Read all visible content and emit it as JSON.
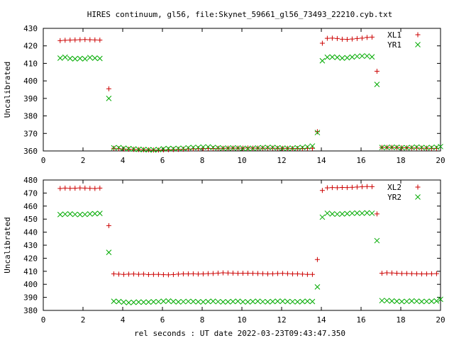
{
  "title": "HIRES continuum, gl56, file:Skynet_59661_gl56_73493_22210.cyb.txt",
  "xlabel": "rel seconds : UT date 2022-03-23T09:43:47.350",
  "chart_data": [
    {
      "type": "scatter",
      "ylabel": "Uncalibrated",
      "xlim": [
        0,
        20
      ],
      "ylim": [
        360,
        430
      ],
      "xticks": [
        0,
        2,
        4,
        6,
        8,
        10,
        12,
        14,
        16,
        18,
        20
      ],
      "yticks": [
        360,
        370,
        380,
        390,
        400,
        410,
        420,
        430
      ],
      "legend_position": "top-right",
      "series": [
        {
          "name": "XL1",
          "marker": "plus",
          "color": "#cc0000",
          "x": [
            0.85,
            1.1,
            1.35,
            1.6,
            1.85,
            2.1,
            2.35,
            2.6,
            2.85,
            3.3,
            3.55,
            3.8,
            4.05,
            4.3,
            4.55,
            4.8,
            5.05,
            5.3,
            5.55,
            5.8,
            6.05,
            6.3,
            6.55,
            6.8,
            7.05,
            7.3,
            7.55,
            7.8,
            8.05,
            8.3,
            8.55,
            8.8,
            9.05,
            9.3,
            9.55,
            9.8,
            10.05,
            10.3,
            10.55,
            10.8,
            11.05,
            11.3,
            11.55,
            11.8,
            12.05,
            12.3,
            12.55,
            12.8,
            13.05,
            13.3,
            13.55,
            13.8,
            14.05,
            14.3,
            14.55,
            14.8,
            15.05,
            15.3,
            15.55,
            15.8,
            16.05,
            16.3,
            16.55,
            16.8,
            17.05,
            17.3,
            17.55,
            17.8,
            18.05,
            18.3,
            18.55,
            18.8,
            19.05,
            19.3,
            19.55,
            19.8
          ],
          "y": [
            423,
            423.2,
            423.3,
            423.4,
            423.5,
            423.6,
            423.5,
            423.4,
            423.3,
            395.5,
            361.5,
            361.3,
            361.1,
            361.0,
            360.9,
            360.8,
            360.7,
            360.6,
            360.5,
            360.5,
            360.6,
            360.7,
            360.8,
            360.9,
            361.0,
            361.1,
            361.2,
            361.3,
            361.3,
            361.4,
            361.4,
            361.5,
            361.5,
            361.6,
            361.6,
            361.6,
            361.6,
            361.7,
            361.6,
            361.6,
            361.6,
            361.6,
            361.6,
            361.5,
            361.5,
            361.5,
            361.4,
            361.4,
            361.4,
            361.5,
            361.5,
            371,
            421.5,
            424.3,
            424.4,
            424.2,
            423.8,
            423.7,
            423.9,
            424.2,
            424.4,
            424.8,
            425.0,
            405.5,
            362,
            362.0,
            362.0,
            361.9,
            361.8,
            361.8,
            361.7,
            361.7,
            361.6,
            361.6,
            361.5,
            361.5
          ]
        },
        {
          "name": "YR1",
          "marker": "cross",
          "color": "#00aa00",
          "x": [
            0.85,
            1.1,
            1.35,
            1.6,
            1.85,
            2.1,
            2.35,
            2.6,
            2.85,
            3.3,
            3.55,
            3.8,
            4.05,
            4.3,
            4.55,
            4.8,
            5.05,
            5.3,
            5.55,
            5.8,
            6.05,
            6.3,
            6.55,
            6.8,
            7.05,
            7.3,
            7.55,
            7.8,
            8.05,
            8.3,
            8.55,
            8.8,
            9.05,
            9.3,
            9.55,
            9.8,
            10.05,
            10.3,
            10.55,
            10.8,
            11.05,
            11.3,
            11.55,
            11.8,
            12.05,
            12.3,
            12.55,
            12.8,
            13.05,
            13.3,
            13.55,
            13.8,
            14.05,
            14.3,
            14.55,
            14.8,
            15.05,
            15.3,
            15.55,
            15.8,
            16.05,
            16.3,
            16.55,
            16.8,
            17.05,
            17.3,
            17.55,
            17.8,
            18.05,
            18.3,
            18.55,
            18.8,
            19.05,
            19.3,
            19.55,
            19.8,
            20.0
          ],
          "y": [
            413,
            413.5,
            412.8,
            412.6,
            412.8,
            412.6,
            413.3,
            413.0,
            412.8,
            390,
            361.8,
            361.9,
            361.6,
            361.3,
            361.1,
            360.9,
            360.8,
            360.7,
            360.6,
            360.8,
            361.2,
            361.4,
            361.3,
            361.5,
            361.5,
            361.8,
            362.0,
            362.0,
            362.2,
            362.3,
            362.0,
            361.8,
            361.6,
            361.6,
            361.7,
            361.7,
            361.5,
            361.4,
            361.5,
            361.7,
            361.9,
            362.0,
            362.0,
            361.8,
            361.6,
            361.5,
            361.6,
            361.8,
            362.0,
            362.3,
            362.8,
            370.5,
            411.5,
            413.5,
            413.6,
            413.4,
            413.0,
            413.2,
            413.6,
            414.0,
            414.2,
            414.2,
            413.7,
            398,
            362,
            362.0,
            362.1,
            362.1,
            361.9,
            361.8,
            362.0,
            362.2,
            362.0,
            361.8,
            362.0,
            362.1,
            362.5
          ]
        }
      ]
    },
    {
      "type": "scatter",
      "ylabel": "Uncalibrated",
      "xlim": [
        0,
        20
      ],
      "ylim": [
        380,
        480
      ],
      "xticks": [
        0,
        2,
        4,
        6,
        8,
        10,
        12,
        14,
        16,
        18,
        20
      ],
      "yticks": [
        380,
        390,
        400,
        410,
        420,
        430,
        440,
        450,
        460,
        470,
        480
      ],
      "legend_position": "top-right",
      "series": [
        {
          "name": "XL2",
          "marker": "plus",
          "color": "#cc0000",
          "x": [
            0.85,
            1.1,
            1.35,
            1.6,
            1.85,
            2.1,
            2.35,
            2.6,
            2.85,
            3.3,
            3.55,
            3.8,
            4.05,
            4.3,
            4.55,
            4.8,
            5.05,
            5.3,
            5.55,
            5.8,
            6.05,
            6.3,
            6.55,
            6.8,
            7.05,
            7.3,
            7.55,
            7.8,
            8.05,
            8.3,
            8.55,
            8.8,
            9.05,
            9.3,
            9.55,
            9.8,
            10.05,
            10.3,
            10.55,
            10.8,
            11.05,
            11.3,
            11.55,
            11.8,
            12.05,
            12.3,
            12.55,
            12.8,
            13.05,
            13.3,
            13.55,
            13.8,
            14.05,
            14.3,
            14.55,
            14.8,
            15.05,
            15.3,
            15.55,
            15.8,
            16.05,
            16.3,
            16.55,
            16.8,
            17.05,
            17.3,
            17.55,
            17.8,
            18.05,
            18.3,
            18.55,
            18.8,
            19.05,
            19.3,
            19.55,
            19.8
          ],
          "y": [
            473.5,
            473.8,
            473.6,
            473.7,
            473.9,
            473.8,
            473.6,
            473.5,
            473.8,
            445,
            408,
            407.8,
            407.6,
            407.8,
            407.9,
            407.7,
            407.8,
            407.5,
            407.6,
            407.6,
            407.4,
            407.3,
            407.5,
            407.8,
            408.0,
            408.0,
            408.1,
            407.9,
            408.0,
            408.2,
            408.3,
            408.6,
            408.8,
            408.7,
            408.6,
            408.4,
            408.5,
            408.5,
            408.4,
            408.3,
            408.2,
            408.0,
            408.1,
            408.3,
            408.4,
            408.2,
            408.0,
            408.0,
            407.8,
            407.6,
            407.6,
            419,
            472,
            474,
            474.2,
            474.1,
            474.3,
            474.2,
            474.4,
            474.6,
            474.8,
            475.0,
            474.9,
            454,
            408.5,
            408.8,
            408.7,
            408.5,
            408.3,
            408.3,
            408.2,
            408.1,
            408.0,
            408.0,
            408.1,
            408.2
          ]
        },
        {
          "name": "YR2",
          "marker": "cross",
          "color": "#00aa00",
          "x": [
            0.85,
            1.1,
            1.35,
            1.6,
            1.85,
            2.1,
            2.35,
            2.6,
            2.85,
            3.3,
            3.55,
            3.8,
            4.05,
            4.3,
            4.55,
            4.8,
            5.05,
            5.3,
            5.55,
            5.8,
            6.05,
            6.3,
            6.55,
            6.8,
            7.05,
            7.3,
            7.55,
            7.8,
            8.05,
            8.3,
            8.55,
            8.8,
            9.05,
            9.3,
            9.55,
            9.8,
            10.05,
            10.3,
            10.55,
            10.8,
            11.05,
            11.3,
            11.55,
            11.8,
            12.05,
            12.3,
            12.55,
            12.8,
            13.05,
            13.3,
            13.55,
            13.8,
            14.05,
            14.3,
            14.55,
            14.8,
            15.05,
            15.3,
            15.55,
            15.8,
            16.05,
            16.3,
            16.55,
            16.8,
            17.05,
            17.3,
            17.55,
            17.8,
            18.05,
            18.3,
            18.55,
            18.8,
            19.05,
            19.3,
            19.55,
            19.8,
            20.0
          ],
          "y": [
            453.5,
            453.8,
            454.0,
            453.6,
            453.5,
            453.6,
            454.0,
            454.2,
            454.4,
            424.5,
            387,
            386.8,
            386.3,
            386.0,
            386.2,
            386.4,
            386.3,
            386.4,
            386.6,
            386.7,
            387.0,
            387.2,
            386.8,
            386.5,
            386.7,
            386.9,
            386.8,
            386.6,
            386.5,
            386.8,
            387.0,
            386.7,
            386.5,
            386.6,
            386.8,
            387.0,
            386.6,
            386.5,
            386.8,
            387.0,
            386.7,
            386.6,
            386.8,
            387.0,
            387.0,
            386.8,
            386.7,
            386.6,
            386.8,
            387.0,
            386.8,
            398,
            451.5,
            454.5,
            454.0,
            453.8,
            454.0,
            454.2,
            454.5,
            454.6,
            454.5,
            454.8,
            454.5,
            433.5,
            387.5,
            387.5,
            387.2,
            387.0,
            386.8,
            386.9,
            387.2,
            387.1,
            386.8,
            386.9,
            387.0,
            387.2,
            388.5
          ]
        }
      ]
    }
  ]
}
